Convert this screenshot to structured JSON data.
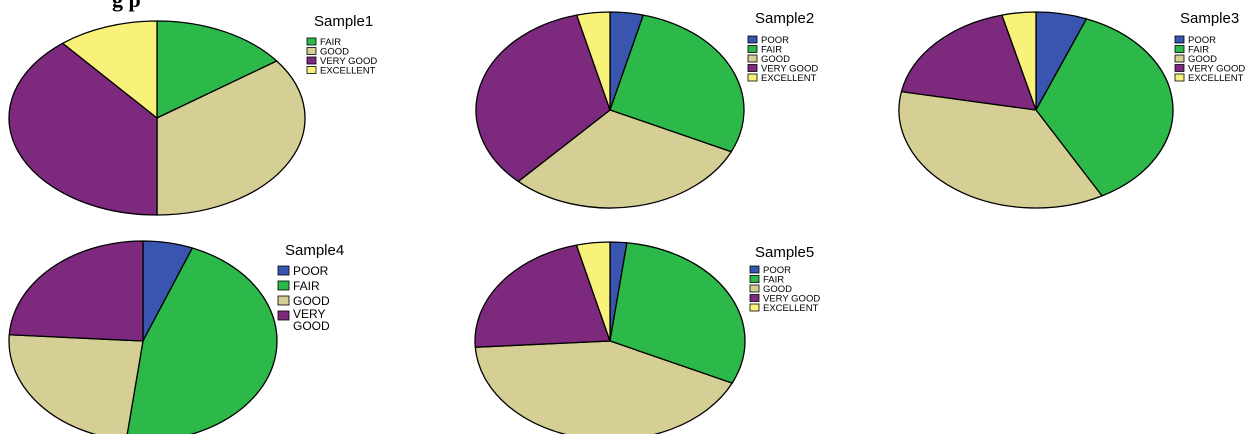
{
  "figure": {
    "header": "g    p"
  },
  "colors": {
    "POOR": "#3a55b0",
    "FAIR": "#2db84a",
    "GOOD": "#d5cf95",
    "VERY GOOD": "#7d2a7e",
    "EXCELLENT": "#f8f27a"
  },
  "chart_data": [
    {
      "type": "pie",
      "title": "Sample1",
      "legend": [
        "FAIR",
        "GOOD",
        "VERY GOOD",
        "EXCELLENT"
      ],
      "slices": [
        {
          "label": "FAIR",
          "value": 15
        },
        {
          "label": "GOOD",
          "value": 35
        },
        {
          "label": "VERY GOOD",
          "value": 39
        },
        {
          "label": "EXCELLENT",
          "value": 11
        }
      ]
    },
    {
      "type": "pie",
      "title": "Sample2",
      "legend": [
        "POOR",
        "FAIR",
        "GOOD",
        "VERY GOOD",
        "EXCELLENT"
      ],
      "slices": [
        {
          "label": "POOR",
          "value": 4
        },
        {
          "label": "FAIR",
          "value": 28
        },
        {
          "label": "GOOD",
          "value": 30
        },
        {
          "label": "VERY GOOD",
          "value": 34
        },
        {
          "label": "EXCELLENT",
          "value": 4
        }
      ]
    },
    {
      "type": "pie",
      "title": "Sample3",
      "legend": [
        "POOR",
        "FAIR",
        "GOOD",
        "VERY GOOD",
        "EXCELLENT"
      ],
      "slices": [
        {
          "label": "POOR",
          "value": 6
        },
        {
          "label": "FAIR",
          "value": 36
        },
        {
          "label": "GOOD",
          "value": 36
        },
        {
          "label": "VERY GOOD",
          "value": 18
        },
        {
          "label": "EXCELLENT",
          "value": 4
        }
      ]
    },
    {
      "type": "pie",
      "title": "Sample4",
      "legend": [
        "POOR",
        "FAIR",
        "GOOD",
        "VERY GOOD"
      ],
      "slices": [
        {
          "label": "POOR",
          "value": 6
        },
        {
          "label": "FAIR",
          "value": 46
        },
        {
          "label": "GOOD",
          "value": 24
        },
        {
          "label": "VERY GOOD",
          "value": 24
        }
      ]
    },
    {
      "type": "pie",
      "title": "Sample5",
      "legend": [
        "POOR",
        "FAIR",
        "GOOD",
        "VERY GOOD",
        "EXCELLENT"
      ],
      "slices": [
        {
          "label": "POOR",
          "value": 2
        },
        {
          "label": "FAIR",
          "value": 30
        },
        {
          "label": "GOOD",
          "value": 42
        },
        {
          "label": "VERY GOOD",
          "value": 22
        },
        {
          "label": "EXCELLENT",
          "value": 4
        }
      ]
    }
  ]
}
